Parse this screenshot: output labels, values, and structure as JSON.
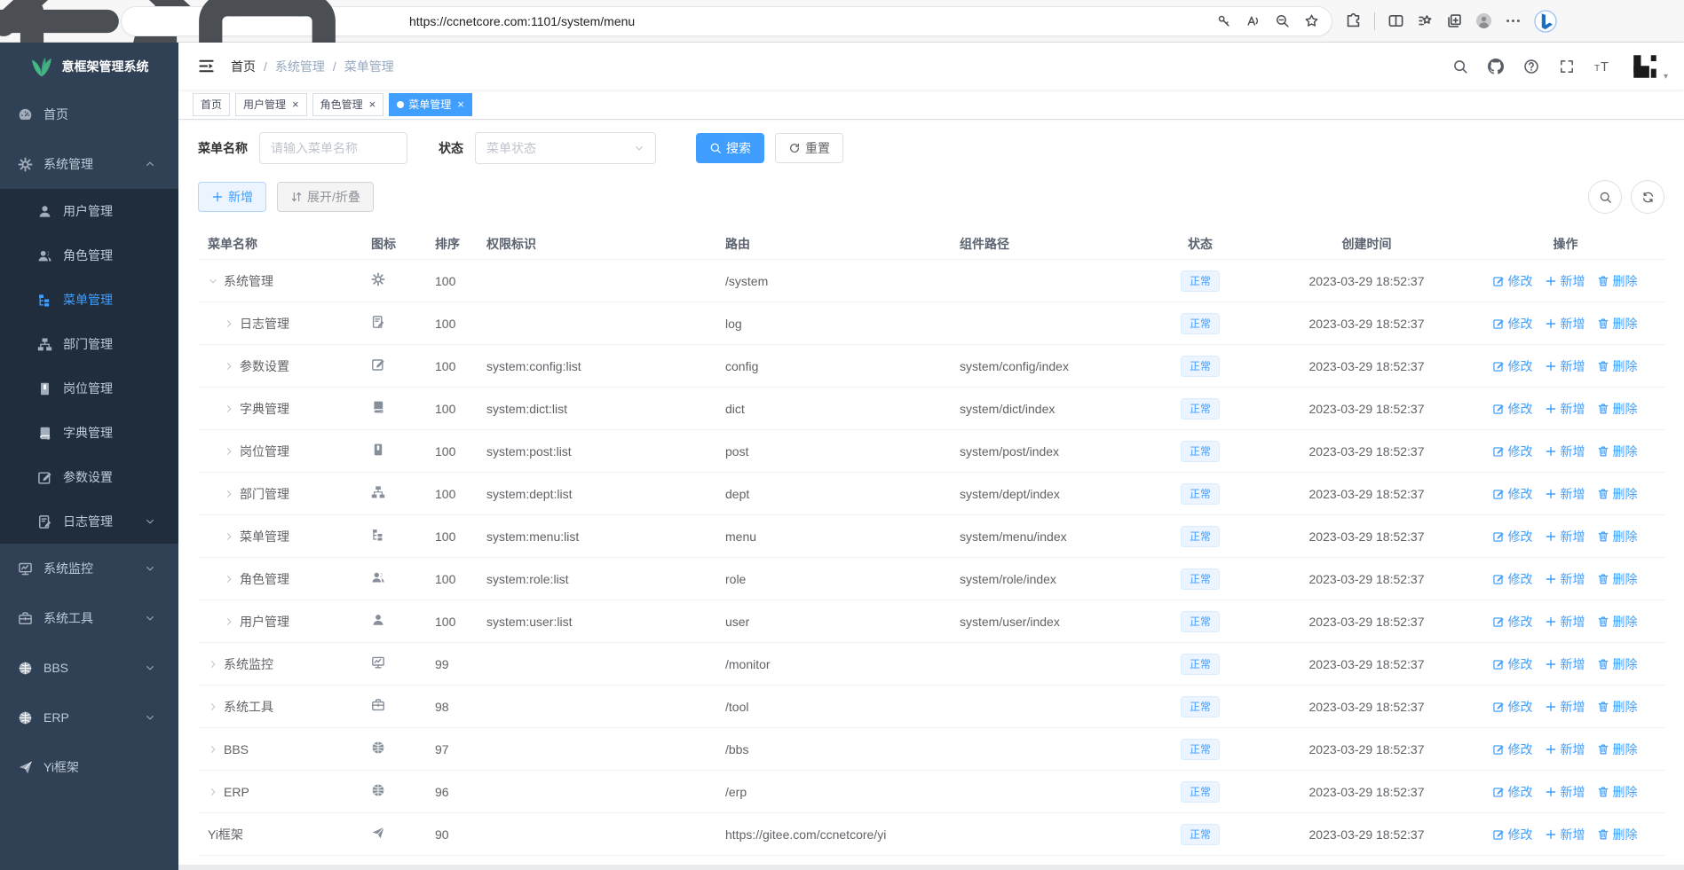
{
  "browser": {
    "url": "https://ccnetcore.com:1101/system/menu",
    "nav_icons": [
      "back",
      "reload",
      "home"
    ],
    "pill_left_icon": "lock",
    "pill_right_icons": [
      "key",
      "read-aloud",
      "zoom-out",
      "favorite-add"
    ],
    "right_icons": [
      "extensions",
      "split-screen",
      "favorites",
      "collections",
      "profile",
      "more",
      "bing"
    ]
  },
  "sidebar": {
    "title": "意框架管理系统",
    "logo_icon": "leaf-logo",
    "items": [
      {
        "label": "首页",
        "icon": "dashboard",
        "level": "top",
        "active": false,
        "arrow": ""
      },
      {
        "label": "系统管理",
        "icon": "gear",
        "level": "top",
        "active": false,
        "arrow": "up"
      },
      {
        "label": "用户管理",
        "icon": "user",
        "level": "sub",
        "active": false,
        "arrow": ""
      },
      {
        "label": "角色管理",
        "icon": "peoples",
        "level": "sub",
        "active": false,
        "arrow": ""
      },
      {
        "label": "菜单管理",
        "icon": "tree-table",
        "level": "sub",
        "active": true,
        "arrow": ""
      },
      {
        "label": "部门管理",
        "icon": "tree",
        "level": "sub",
        "active": false,
        "arrow": ""
      },
      {
        "label": "岗位管理",
        "icon": "post",
        "level": "sub",
        "active": false,
        "arrow": ""
      },
      {
        "label": "字典管理",
        "icon": "dict",
        "level": "sub",
        "active": false,
        "arrow": ""
      },
      {
        "label": "参数设置",
        "icon": "edit",
        "level": "sub",
        "active": false,
        "arrow": ""
      },
      {
        "label": "日志管理",
        "icon": "log",
        "level": "sub",
        "active": false,
        "arrow": "down"
      },
      {
        "label": "系统监控",
        "icon": "monitor",
        "level": "top",
        "active": false,
        "arrow": "down"
      },
      {
        "label": "系统工具",
        "icon": "tool",
        "level": "top",
        "active": false,
        "arrow": "down"
      },
      {
        "label": "BBS",
        "icon": "globe",
        "level": "top",
        "active": false,
        "arrow": "down"
      },
      {
        "label": "ERP",
        "icon": "globe",
        "level": "top",
        "active": false,
        "arrow": "down"
      },
      {
        "label": "Yi框架",
        "icon": "send",
        "level": "top",
        "active": false,
        "arrow": ""
      }
    ]
  },
  "navbar": {
    "breadcrumb": [
      "首页",
      "系统管理",
      "菜单管理"
    ],
    "separator": "/",
    "icons": [
      "search",
      "github",
      "question",
      "fullscreen",
      "font-size"
    ],
    "avatar_icon": "yi-logo"
  },
  "tabs": [
    {
      "label": "首页",
      "closable": false,
      "active": false
    },
    {
      "label": "用户管理",
      "closable": true,
      "active": false
    },
    {
      "label": "角色管理",
      "closable": true,
      "active": false
    },
    {
      "label": "菜单管理",
      "closable": true,
      "active": true
    }
  ],
  "filter": {
    "name_label": "菜单名称",
    "name_placeholder": "请输入菜单名称",
    "name_value": "",
    "status_label": "状态",
    "status_placeholder": "菜单状态",
    "search_label": "搜索",
    "search_icon": "search",
    "reset_label": "重置",
    "reset_icon": "refresh"
  },
  "toolbar": {
    "add_label": "新增",
    "add_icon": "plus",
    "expand_label": "展开/折叠",
    "expand_icon": "sort",
    "right_icons": [
      "search",
      "refresh-cw"
    ]
  },
  "table": {
    "columns": [
      "菜单名称",
      "图标",
      "排序",
      "权限标识",
      "路由",
      "组件路径",
      "状态",
      "创建时间",
      "操作"
    ],
    "action_labels": [
      "修改",
      "新增",
      "删除"
    ],
    "action_icons": [
      "edit-pen",
      "plus",
      "trash"
    ],
    "rows": [
      {
        "name": "系统管理",
        "caret": "down",
        "depth": 0,
        "icon": "gear",
        "sort": "100",
        "perms": "",
        "route": "/system",
        "component": "",
        "status": "正常",
        "time": "2023-03-29 18:52:37"
      },
      {
        "name": "日志管理",
        "caret": "right",
        "depth": 1,
        "icon": "log",
        "sort": "100",
        "perms": "",
        "route": "log",
        "component": "",
        "status": "正常",
        "time": "2023-03-29 18:52:37"
      },
      {
        "name": "参数设置",
        "caret": "right",
        "depth": 1,
        "icon": "edit",
        "sort": "100",
        "perms": "system:config:list",
        "route": "config",
        "component": "system/config/index",
        "status": "正常",
        "time": "2023-03-29 18:52:37"
      },
      {
        "name": "字典管理",
        "caret": "right",
        "depth": 1,
        "icon": "dict",
        "sort": "100",
        "perms": "system:dict:list",
        "route": "dict",
        "component": "system/dict/index",
        "status": "正常",
        "time": "2023-03-29 18:52:37"
      },
      {
        "name": "岗位管理",
        "caret": "right",
        "depth": 1,
        "icon": "post",
        "sort": "100",
        "perms": "system:post:list",
        "route": "post",
        "component": "system/post/index",
        "status": "正常",
        "time": "2023-03-29 18:52:37"
      },
      {
        "name": "部门管理",
        "caret": "right",
        "depth": 1,
        "icon": "tree",
        "sort": "100",
        "perms": "system:dept:list",
        "route": "dept",
        "component": "system/dept/index",
        "status": "正常",
        "time": "2023-03-29 18:52:37"
      },
      {
        "name": "菜单管理",
        "caret": "right",
        "depth": 1,
        "icon": "tree-table",
        "sort": "100",
        "perms": "system:menu:list",
        "route": "menu",
        "component": "system/menu/index",
        "status": "正常",
        "time": "2023-03-29 18:52:37"
      },
      {
        "name": "角色管理",
        "caret": "right",
        "depth": 1,
        "icon": "peoples",
        "sort": "100",
        "perms": "system:role:list",
        "route": "role",
        "component": "system/role/index",
        "status": "正常",
        "time": "2023-03-29 18:52:37"
      },
      {
        "name": "用户管理",
        "caret": "right",
        "depth": 1,
        "icon": "user",
        "sort": "100",
        "perms": "system:user:list",
        "route": "user",
        "component": "system/user/index",
        "status": "正常",
        "time": "2023-03-29 18:52:37"
      },
      {
        "name": "系统监控",
        "caret": "right",
        "depth": 0,
        "icon": "monitor",
        "sort": "99",
        "perms": "",
        "route": "/monitor",
        "component": "",
        "status": "正常",
        "time": "2023-03-29 18:52:37"
      },
      {
        "name": "系统工具",
        "caret": "right",
        "depth": 0,
        "icon": "tool",
        "sort": "98",
        "perms": "",
        "route": "/tool",
        "component": "",
        "status": "正常",
        "time": "2023-03-29 18:52:37"
      },
      {
        "name": "BBS",
        "caret": "right",
        "depth": 0,
        "icon": "globe",
        "sort": "97",
        "perms": "",
        "route": "/bbs",
        "component": "",
        "status": "正常",
        "time": "2023-03-29 18:52:37"
      },
      {
        "name": "ERP",
        "caret": "right",
        "depth": 0,
        "icon": "globe",
        "sort": "96",
        "perms": "",
        "route": "/erp",
        "component": "",
        "status": "正常",
        "time": "2023-03-29 18:52:37"
      },
      {
        "name": "Yi框架",
        "caret": "",
        "depth": 0,
        "icon": "send",
        "sort": "90",
        "perms": "",
        "route": "https://gitee.com/ccnetcore/yi",
        "component": "",
        "status": "正常",
        "time": "2023-03-29 18:52:37"
      }
    ]
  },
  "colors": {
    "primary": "#409eff",
    "sidebar_bg": "#304156",
    "submenu_bg": "#1f2d3d",
    "status_tag_bg": "#ecf5ff",
    "status_tag_border": "#d9ecff",
    "logo_green": "#43b984"
  }
}
